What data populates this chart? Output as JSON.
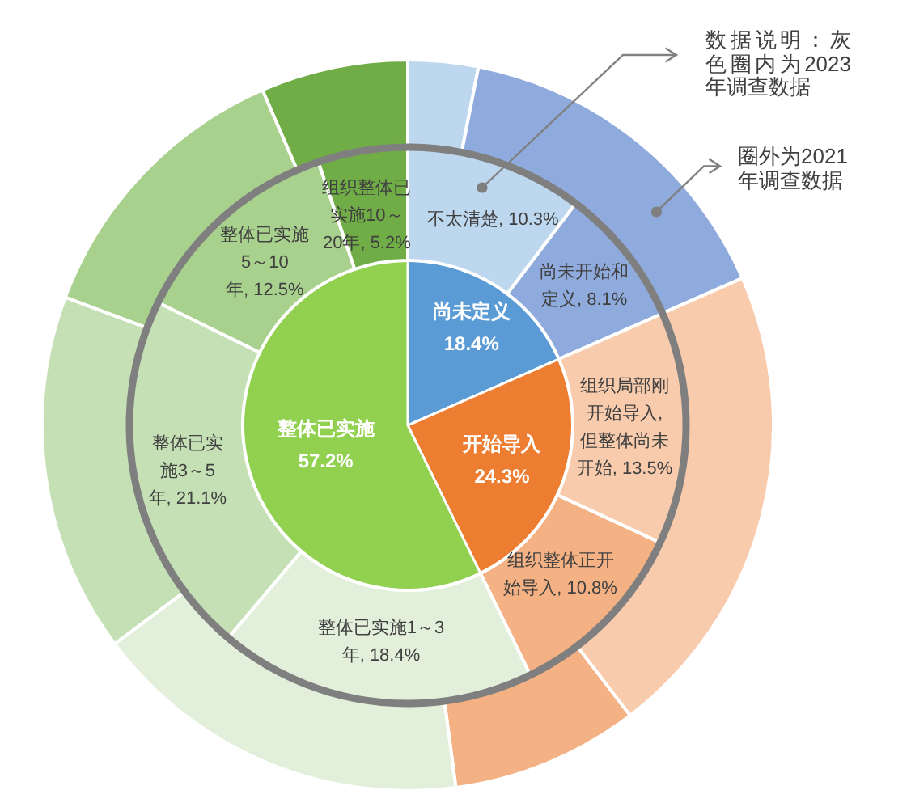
{
  "chart_data": [
    {
      "type": "pie",
      "categories": [
        "尚未定义",
        "开始导入",
        "整体已实施"
      ],
      "values": [
        18.4,
        24.3,
        57.2
      ],
      "value_labels": [
        "18.4%",
        "24.3%",
        "57.2%"
      ],
      "colors": [
        "#5b9bd5",
        "#ed7d31",
        "#92d050"
      ]
    },
    {
      "type": "donut",
      "categories": [
        "不太清楚",
        "尚未开始和定义",
        "组织局部刚开始导入, 但整体尚未开始",
        "组织整体正开始导入",
        "整体已实施1～3年",
        "整体已实施3～5年",
        "整体已实施5～10年",
        "组织整体已实施10～20年"
      ],
      "values": [
        10.3,
        8.1,
        13.5,
        10.8,
        18.4,
        21.1,
        12.5,
        5.2
      ],
      "value_labels": [
        "10.3%",
        "8.1%",
        "13.5%",
        "10.8%",
        "18.4%",
        "21.1%",
        "12.5%",
        "5.2%"
      ],
      "colors": [
        "#bdd7ee",
        "#8faadc",
        "#f8cbad",
        "#f4b183",
        "#e2efda",
        "#c5e0b4",
        "#a9d18e",
        "#70ad47"
      ],
      "annotations": [
        "数据说明：灰色圈内为2023年调查数据"
      ]
    },
    {
      "type": "donut",
      "categories": [
        null,
        null,
        null,
        null,
        null,
        null,
        null,
        null
      ],
      "values": [
        3.1,
        15.3,
        21.2,
        8.3,
        16.9,
        15.9,
        12.8,
        6.5
      ],
      "colors": [
        "#bdd7ee",
        "#8faadc",
        "#f8cbad",
        "#f4b183",
        "#e2efda",
        "#c5e0b4",
        "#a9d18e",
        "#70ad47"
      ],
      "annotations": [
        "圈外为2021年调查数据"
      ]
    }
  ]
}
